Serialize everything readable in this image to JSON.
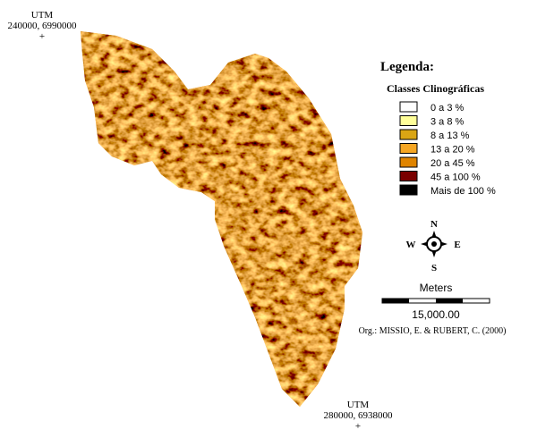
{
  "corner_top": {
    "label": "UTM",
    "coords": "240000, 6990000",
    "marker": "+"
  },
  "corner_bottom": {
    "label": "UTM",
    "coords": "280000, 6938000",
    "marker": "+"
  },
  "legend": {
    "title": "Legenda:",
    "subtitle": "Classes Clinográficas",
    "items": [
      {
        "label": "0 a 3 %",
        "color": "#ffffff"
      },
      {
        "label": "3 a 8 %",
        "color": "#ffff99"
      },
      {
        "label": "8 a 13 %",
        "color": "#d9a514"
      },
      {
        "label": "13 a 20 %",
        "color": "#f5a623"
      },
      {
        "label": "20 a 45 %",
        "color": "#e08400"
      },
      {
        "label": "45 a 100 %",
        "color": "#7a0000"
      },
      {
        "label": "Mais de 100 %",
        "color": "#000000"
      }
    ]
  },
  "compass": {
    "north": "N",
    "south": "S",
    "east": "E",
    "west": "W"
  },
  "scale": {
    "unit": "Meters",
    "length": "15,000.00"
  },
  "credit": "Org.: MISSIO, E. & RUBERT, C. (2000)"
}
